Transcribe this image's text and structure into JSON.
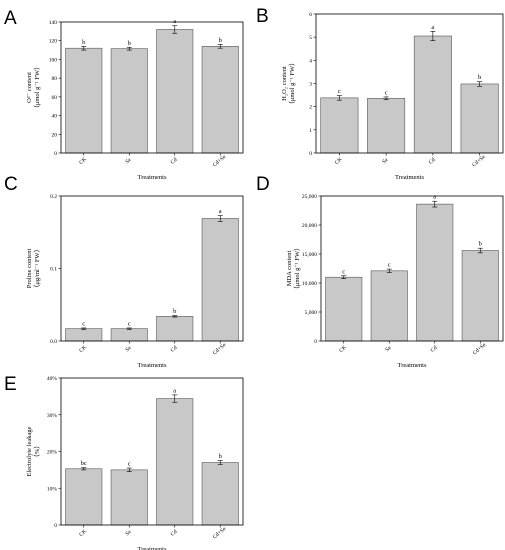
{
  "chart_data": [
    {
      "panel": "A",
      "type": "bar",
      "categories": [
        "CK",
        "Se",
        "Cd",
        "Cd+Se"
      ],
      "values": [
        112,
        111.5,
        132,
        114
      ],
      "errors": [
        2,
        1.5,
        4,
        2
      ],
      "significance": [
        "b",
        "b",
        "a",
        "b"
      ],
      "ylabel": [
        "O²⁻ content",
        "（μmol g⁻¹ FW）"
      ],
      "xlabel": "Treatments",
      "ylim": [
        0,
        140
      ],
      "yticks": [
        "0",
        "20",
        "40",
        "60",
        "80",
        "100",
        "120",
        "140"
      ],
      "ytick_values": [
        0,
        20,
        40,
        60,
        80,
        100,
        120,
        140
      ],
      "bar_color": "#c8c8c8"
    },
    {
      "panel": "B",
      "type": "bar",
      "categories": [
        "CK",
        "Se",
        "Cd",
        "Cd+Se"
      ],
      "values": [
        2.38,
        2.36,
        5.05,
        2.98
      ],
      "errors": [
        0.1,
        0.06,
        0.2,
        0.1
      ],
      "significance": [
        "c",
        "c",
        "a",
        "b"
      ],
      "ylabel": [
        "H₂O₂ content",
        "（μmol g⁻¹ FW）"
      ],
      "xlabel": "Treatments",
      "ylim": [
        0,
        6
      ],
      "yticks": [
        "0",
        "1",
        "2",
        "3",
        "4",
        "5",
        "6"
      ],
      "ytick_values": [
        0,
        1,
        2,
        3,
        4,
        5,
        6
      ],
      "bar_color": "#c8c8c8"
    },
    {
      "panel": "C",
      "type": "bar",
      "categories": [
        "CK",
        "Se",
        "Cd",
        "Cd+Se"
      ],
      "values": [
        0.017,
        0.017,
        0.034,
        0.169
      ],
      "errors": [
        0.001,
        0.001,
        0.001,
        0.004
      ],
      "significance": [
        "c",
        "c",
        "b",
        "a"
      ],
      "ylabel": [
        "Proline content",
        "（μg/ml⁻¹ FW）"
      ],
      "xlabel": "Treatments",
      "ylim": [
        0,
        0.2
      ],
      "yticks": [
        "0.0",
        "0.1",
        "0.2"
      ],
      "ytick_values": [
        0,
        0.1,
        0.2
      ],
      "bar_color": "#c8c8c8"
    },
    {
      "panel": "D",
      "type": "bar",
      "categories": [
        "CK",
        "Se",
        "Cd",
        "Cd+Se"
      ],
      "values": [
        11000,
        12100,
        23600,
        15600
      ],
      "errors": [
        250,
        300,
        500,
        400
      ],
      "significance": [
        "c",
        "c",
        "a",
        "b"
      ],
      "ylabel": [
        "MDA content",
        "（μmol g⁻¹ FW）"
      ],
      "xlabel": "Treatments",
      "ylim": [
        0,
        25000
      ],
      "yticks": [
        "0",
        "5,000",
        "10,000",
        "15,000",
        "20,000",
        "25,000"
      ],
      "ytick_values": [
        0,
        5000,
        10000,
        15000,
        20000,
        25000
      ],
      "bar_color": "#c8c8c8"
    },
    {
      "panel": "E",
      "type": "bar",
      "categories": [
        "CK",
        "Se",
        "Cd",
        "Cd+Se"
      ],
      "values": [
        15.3,
        15,
        34.4,
        17
      ],
      "errors": [
        0.3,
        0.5,
        1,
        0.5
      ],
      "significance": [
        "bc",
        "c",
        "a",
        "b"
      ],
      "ylabel": [
        "Electrolyte leakage",
        "（%）"
      ],
      "xlabel": "Treatments",
      "ylim": [
        0,
        40
      ],
      "yticks": [
        "0",
        "10%",
        "20%",
        "30%",
        "40%"
      ],
      "ytick_values": [
        0,
        10,
        20,
        30,
        40
      ],
      "bar_color": "#c8c8c8"
    }
  ]
}
